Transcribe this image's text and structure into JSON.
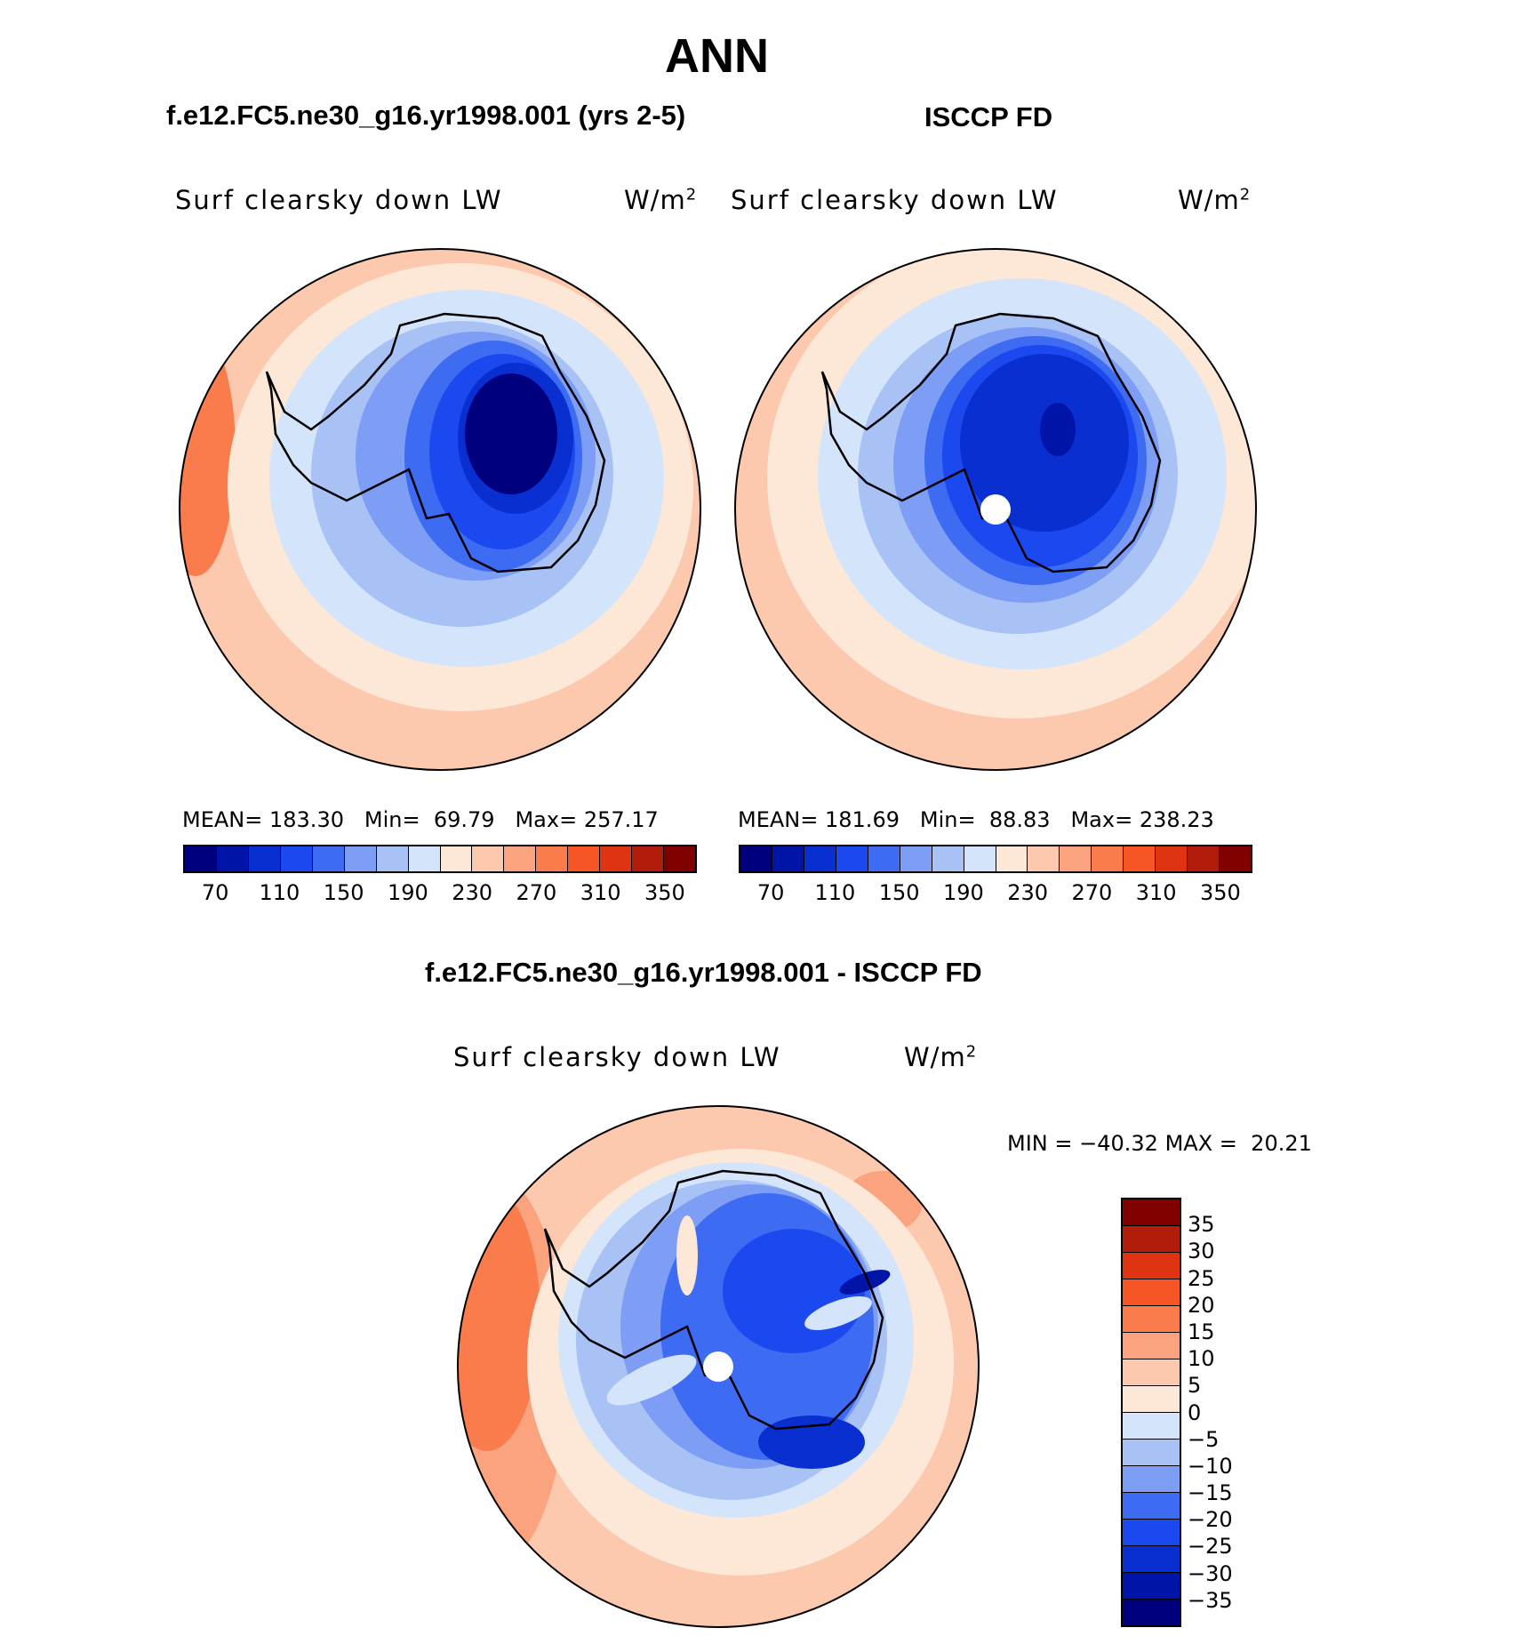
{
  "title": "ANN",
  "panels": [
    {
      "case_title": "f.e12.FC5.ne30_g16.yr1998.001 (yrs 2-5)",
      "variable": "Surf clearsky down LW",
      "units": "W/m",
      "units_sup": "2",
      "stats": {
        "mean_label": "MEAN=",
        "mean": "183.30",
        "min_label": "Min=",
        "min": "69.79",
        "max_label": "Max=",
        "max": "257.17"
      }
    },
    {
      "case_title": "ISCCP FD",
      "variable": "Surf clearsky down LW",
      "units": "W/m",
      "units_sup": "2",
      "stats": {
        "mean_label": "MEAN=",
        "mean": "181.69",
        "min_label": "Min=",
        "min": "88.83",
        "max_label": "Max=",
        "max": "238.23"
      }
    }
  ],
  "field_colorbar": {
    "colors": [
      "#00007f",
      "#0015a8",
      "#0a2fd0",
      "#1c48ef",
      "#3d6bf2",
      "#7d9ef4",
      "#a9c2f6",
      "#d4e5fb",
      "#fde7d6",
      "#fcc8ae",
      "#fba37e",
      "#fa7c4c",
      "#f65626",
      "#de3412",
      "#b11d0a",
      "#800000"
    ],
    "tick_labels": [
      "70",
      "110",
      "150",
      "190",
      "230",
      "270",
      "310",
      "350"
    ]
  },
  "difference": {
    "case_title": "f.e12.FC5.ne30_g16.yr1998.001 - ISCCP FD",
    "variable": "Surf clearsky down LW",
    "units": "W/m",
    "units_sup": "2",
    "stats": {
      "min_label": "MIN =",
      "min": "−40.32",
      "max_label": "MAX =",
      "max": "20.21"
    },
    "colorbar": {
      "colors": [
        "#800000",
        "#b11d0a",
        "#de3412",
        "#f65626",
        "#fa7c4c",
        "#fba37e",
        "#fcc8ae",
        "#fde7d6",
        "#d4e5fb",
        "#a9c2f6",
        "#7d9ef4",
        "#3d6bf2",
        "#1c48ef",
        "#0a2fd0",
        "#0015a8",
        "#00007f"
      ],
      "tick_labels": [
        "35",
        "30",
        "25",
        "20",
        "15",
        "10",
        "5",
        "0",
        "−5",
        "−10",
        "−15",
        "−20",
        "−25",
        "−30",
        "−35"
      ]
    }
  }
}
